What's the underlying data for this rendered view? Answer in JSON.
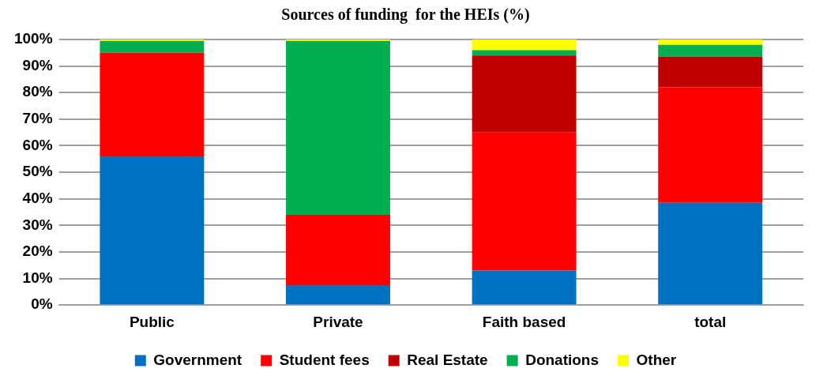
{
  "chart_data": {
    "type": "bar",
    "title": "Sources of funding  for the HEIs (%)",
    "categories": [
      "Public",
      "Private",
      "Faith based",
      "total"
    ],
    "stacked": true,
    "legend": "bottom",
    "grid": "y",
    "ylim": [
      0,
      100
    ],
    "yticks": [
      {
        "value": 0,
        "label": "0%"
      },
      {
        "value": 10,
        "label": "10%"
      },
      {
        "value": 20,
        "label": "20%"
      },
      {
        "value": 30,
        "label": "30%"
      },
      {
        "value": 40,
        "label": "40%"
      },
      {
        "value": 50,
        "label": "50%"
      },
      {
        "value": 60,
        "label": "60%"
      },
      {
        "value": 70,
        "label": "70%"
      },
      {
        "value": 80,
        "label": "80%"
      },
      {
        "value": 90,
        "label": "90%"
      },
      {
        "value": 100,
        "label": "100%"
      }
    ],
    "series": [
      {
        "name": "Government",
        "color": "#0070c0",
        "values": [
          56,
          7.5,
          13,
          38.5
        ]
      },
      {
        "name": "Student fees",
        "color": "#ff0000",
        "values": [
          39,
          26.5,
          52,
          43.5
        ]
      },
      {
        "name": "Real Estate",
        "color": "#c00000",
        "values": [
          0,
          0,
          29,
          11.5
        ]
      },
      {
        "name": "Donations",
        "color": "#00b050",
        "values": [
          4.5,
          65.5,
          2,
          4.5
        ]
      },
      {
        "name": "Other",
        "color": "#ffff00",
        "values": [
          0.5,
          0.5,
          4,
          2
        ]
      }
    ]
  }
}
